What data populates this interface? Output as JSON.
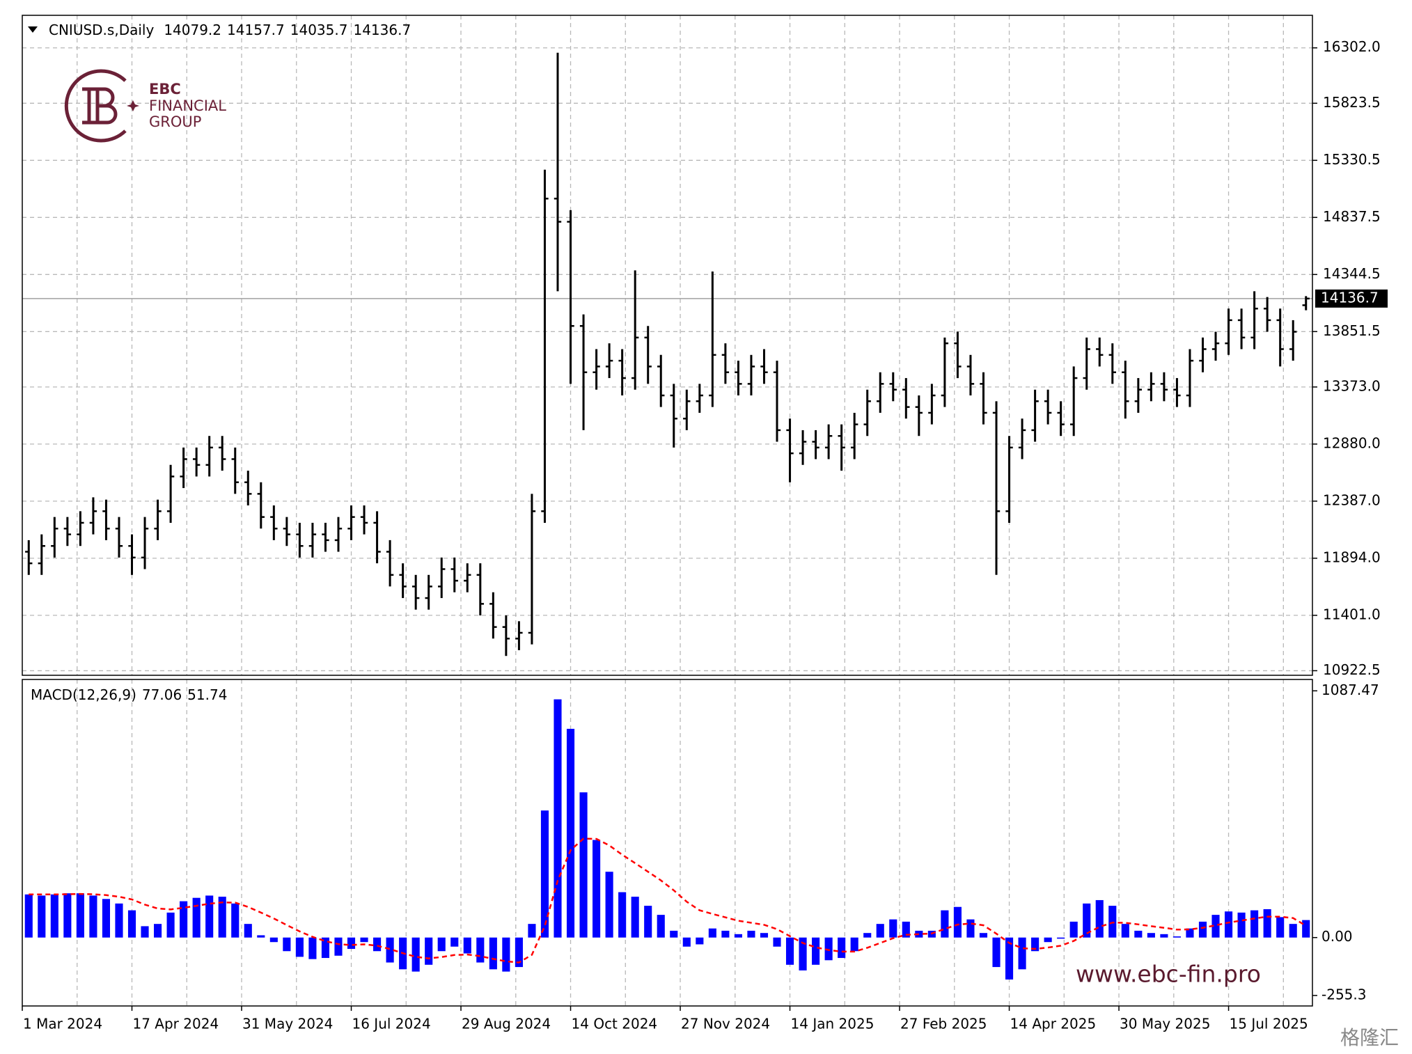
{
  "chart_data": [
    {
      "type": "ohlc",
      "title": "CNIUSD.s,Daily",
      "color": "#000000",
      "grid": true,
      "logo": [
        "EBC",
        "FINANCIAL",
        "GROUP"
      ],
      "watermark": "www.ebc-fin.pro",
      "source": "格隆汇",
      "xlim": [
        0,
        100
      ],
      "xticks": [
        {
          "value": 0,
          "label": "1 Mar 2024"
        },
        {
          "value": 8.5,
          "label": "17 Apr 2024"
        },
        {
          "value": 17,
          "label": "31 May 2024"
        },
        {
          "value": 25.5,
          "label": "16 Jul 2024"
        },
        {
          "value": 34,
          "label": "29 Aug 2024"
        },
        {
          "value": 42.5,
          "label": "14 Oct 2024"
        },
        {
          "value": 51,
          "label": "27 Nov 2024"
        },
        {
          "value": 59.5,
          "label": "14 Jan 2025"
        },
        {
          "value": 68,
          "label": "27 Feb 2025"
        },
        {
          "value": 76.5,
          "label": "14 Apr 2025"
        },
        {
          "value": 85,
          "label": "30 May 2025"
        },
        {
          "value": 93.5,
          "label": "15 Jul 2025"
        }
      ],
      "ylim": [
        10883,
        16583
      ],
      "yticks": [
        {
          "value": 16302,
          "label": "16302.0"
        },
        15823.5,
        15330.5,
        14837.5,
        14344.5,
        13851.5,
        {
          "value": 13373,
          "label": "13373.0"
        },
        {
          "value": 12880,
          "label": "12880.0"
        },
        {
          "value": 12387,
          "label": "12387.0"
        },
        {
          "value": 11894,
          "label": "11894.0"
        },
        {
          "value": 11401,
          "label": "11401.0"
        },
        10922.5
      ],
      "ohlc": [
        [
          11950,
          12050,
          11750,
          11850
        ],
        [
          11850,
          12100,
          11750,
          12000
        ],
        [
          12000,
          12250,
          11900,
          12150
        ],
        [
          12150,
          12250,
          12000,
          12100
        ],
        [
          12100,
          12300,
          12000,
          12200
        ],
        [
          12200,
          12420,
          12100,
          12300
        ],
        [
          12300,
          12400,
          12050,
          12150
        ],
        [
          12150,
          12250,
          11900,
          12000
        ],
        [
          12000,
          12100,
          11750,
          11900
        ],
        [
          11900,
          12250,
          11800,
          12150
        ],
        [
          12150,
          12400,
          12050,
          12300
        ],
        [
          12300,
          12700,
          12200,
          12600
        ],
        [
          12600,
          12850,
          12500,
          12750
        ],
        [
          12750,
          12850,
          12600,
          12700
        ],
        [
          12700,
          12950,
          12600,
          12850
        ],
        [
          12850,
          12950,
          12650,
          12750
        ],
        [
          12750,
          12850,
          12450,
          12550
        ],
        [
          12550,
          12650,
          12350,
          12450
        ],
        [
          12450,
          12550,
          12150,
          12250
        ],
        [
          12250,
          12350,
          12050,
          12150
        ],
        [
          12150,
          12250,
          12000,
          12100
        ],
        [
          12100,
          12200,
          11900,
          12000
        ],
        [
          12000,
          12200,
          11900,
          12100
        ],
        [
          12100,
          12200,
          11950,
          12050
        ],
        [
          12050,
          12250,
          11950,
          12150
        ],
        [
          12150,
          12350,
          12050,
          12250
        ],
        [
          12250,
          12350,
          12100,
          12200
        ],
        [
          12200,
          12300,
          11850,
          11950
        ],
        [
          11950,
          12050,
          11650,
          11750
        ],
        [
          11750,
          11850,
          11550,
          11650
        ],
        [
          11650,
          11750,
          11450,
          11550
        ],
        [
          11550,
          11750,
          11450,
          11650
        ],
        [
          11650,
          11900,
          11550,
          11800
        ],
        [
          11800,
          11900,
          11600,
          11700
        ],
        [
          11700,
          11850,
          11600,
          11750
        ],
        [
          11750,
          11850,
          11400,
          11500
        ],
        [
          11500,
          11600,
          11200,
          11300
        ],
        [
          11300,
          11400,
          11050,
          11200
        ],
        [
          11200,
          11350,
          11100,
          11250
        ],
        [
          11250,
          12450,
          11150,
          12300
        ],
        [
          12300,
          15250,
          12200,
          15000
        ],
        [
          15000,
          16260,
          14200,
          14800
        ],
        [
          14800,
          14900,
          13400,
          13900
        ],
        [
          13900,
          14000,
          13000,
          13500
        ],
        [
          13500,
          13700,
          13350,
          13550
        ],
        [
          13550,
          13750,
          13450,
          13600
        ],
        [
          13600,
          13700,
          13300,
          13450
        ],
        [
          13450,
          14380,
          13350,
          13800
        ],
        [
          13800,
          13900,
          13400,
          13550
        ],
        [
          13550,
          13650,
          13200,
          13300
        ],
        [
          13300,
          13400,
          12850,
          13100
        ],
        [
          13100,
          13350,
          13000,
          13250
        ],
        [
          13250,
          13400,
          13150,
          13300
        ],
        [
          13300,
          14370,
          13200,
          13650
        ],
        [
          13650,
          13750,
          13400,
          13500
        ],
        [
          13500,
          13600,
          13300,
          13400
        ],
        [
          13400,
          13650,
          13300,
          13550
        ],
        [
          13550,
          13700,
          13400,
          13500
        ],
        [
          13500,
          13600,
          12900,
          13000
        ],
        [
          13000,
          13100,
          12550,
          12800
        ],
        [
          12800,
          13000,
          12700,
          12900
        ],
        [
          12900,
          13000,
          12750,
          12850
        ],
        [
          12850,
          13050,
          12750,
          12950
        ],
        [
          12950,
          13050,
          12650,
          12850
        ],
        [
          12850,
          13150,
          12750,
          13050
        ],
        [
          13050,
          13350,
          12950,
          13250
        ],
        [
          13250,
          13500,
          13150,
          13400
        ],
        [
          13400,
          13500,
          13250,
          13350
        ],
        [
          13350,
          13450,
          13100,
          13200
        ],
        [
          13200,
          13300,
          12950,
          13150
        ],
        [
          13150,
          13400,
          13050,
          13300
        ],
        [
          13300,
          13800,
          13200,
          13750
        ],
        [
          13750,
          13850,
          13450,
          13550
        ],
        [
          13550,
          13650,
          13300,
          13400
        ],
        [
          13400,
          13500,
          13050,
          13150
        ],
        [
          13150,
          13250,
          11750,
          12300
        ],
        [
          12300,
          12950,
          12200,
          12850
        ],
        [
          12850,
          13100,
          12750,
          13000
        ],
        [
          13000,
          13350,
          12900,
          13250
        ],
        [
          13250,
          13350,
          13050,
          13150
        ],
        [
          13150,
          13250,
          12950,
          13050
        ],
        [
          13050,
          13550,
          12950,
          13450
        ],
        [
          13450,
          13800,
          13350,
          13700
        ],
        [
          13700,
          13800,
          13550,
          13650
        ],
        [
          13650,
          13750,
          13400,
          13500
        ],
        [
          13500,
          13600,
          13100,
          13250
        ],
        [
          13250,
          13450,
          13150,
          13350
        ],
        [
          13350,
          13500,
          13250,
          13400
        ],
        [
          13400,
          13500,
          13250,
          13350
        ],
        [
          13350,
          13450,
          13200,
          13300
        ],
        [
          13300,
          13700,
          13200,
          13600
        ],
        [
          13600,
          13800,
          13500,
          13700
        ],
        [
          13700,
          13850,
          13600,
          13750
        ],
        [
          13750,
          14050,
          13650,
          13950
        ],
        [
          13950,
          14050,
          13700,
          13800
        ],
        [
          13800,
          14200,
          13700,
          14050
        ],
        [
          14050,
          14150,
          13850,
          13950
        ],
        [
          13950,
          14050,
          13550,
          13700
        ],
        [
          13700,
          13950,
          13600,
          13850
        ],
        [
          14079.2,
          14157.7,
          14035.7,
          14136.7
        ]
      ]
    },
    {
      "type": "macd",
      "title": "MACD(12,26,9)",
      "grid": true,
      "ylim": [
        -301.6,
        1137.6
      ],
      "yticks": [
        1087.47,
        {
          "value": 0,
          "label": "0.00"
        },
        -255.3
      ],
      "series": [
        {
          "kind": "bar",
          "color": "#0000ff",
          "values": [
            190,
            185,
            190,
            195,
            195,
            185,
            170,
            150,
            120,
            50,
            60,
            110,
            160,
            175,
            185,
            180,
            150,
            60,
            10,
            -20,
            -60,
            -85,
            -95,
            -90,
            -80,
            -50,
            -20,
            -60,
            -110,
            -140,
            -150,
            -120,
            -60,
            -40,
            -70,
            -110,
            -140,
            -150,
            -130,
            60,
            560,
            1050,
            920,
            640,
            430,
            290,
            200,
            180,
            140,
            100,
            30,
            -40,
            -30,
            40,
            30,
            15,
            30,
            20,
            -40,
            -120,
            -145,
            -120,
            -100,
            -90,
            -60,
            20,
            60,
            80,
            70,
            30,
            30,
            120,
            135,
            80,
            20,
            -130,
            -185,
            -140,
            -60,
            -20,
            -5,
            70,
            150,
            165,
            140,
            60,
            30,
            20,
            15,
            5,
            40,
            70,
            100,
            115,
            110,
            120,
            125,
            90,
            60,
            77.06
          ]
        },
        {
          "kind": "line",
          "color": "#ff0000",
          "dashed": true,
          "values": [
            190,
            190,
            190,
            191,
            192,
            191,
            187,
            180,
            168,
            145,
            128,
            124,
            131,
            140,
            149,
            155,
            154,
            135,
            110,
            84,
            55,
            27,
            3,
            -16,
            -29,
            -33,
            -30,
            -36,
            -51,
            -69,
            -85,
            -92,
            -86,
            -77,
            -75,
            -82,
            -94,
            -105,
            -110,
            -76,
            51,
            251,
            385,
            436,
            435,
            406,
            365,
            328,
            290,
            252,
            208,
            158,
            120,
            104,
            89,
            74,
            65,
            56,
            37,
            6,
            -24,
            -43,
            -55,
            -62,
            -62,
            -45,
            -24,
            -3,
            12,
            15,
            18,
            38,
            57,
            62,
            54,
            17,
            -24,
            -47,
            -50,
            -44,
            -36,
            -15,
            18,
            47,
            66,
            65,
            58,
            50,
            43,
            35,
            36,
            43,
            54,
            66,
            75,
            84,
            92,
            92,
            86,
            51.74
          ]
        }
      ]
    }
  ]
}
